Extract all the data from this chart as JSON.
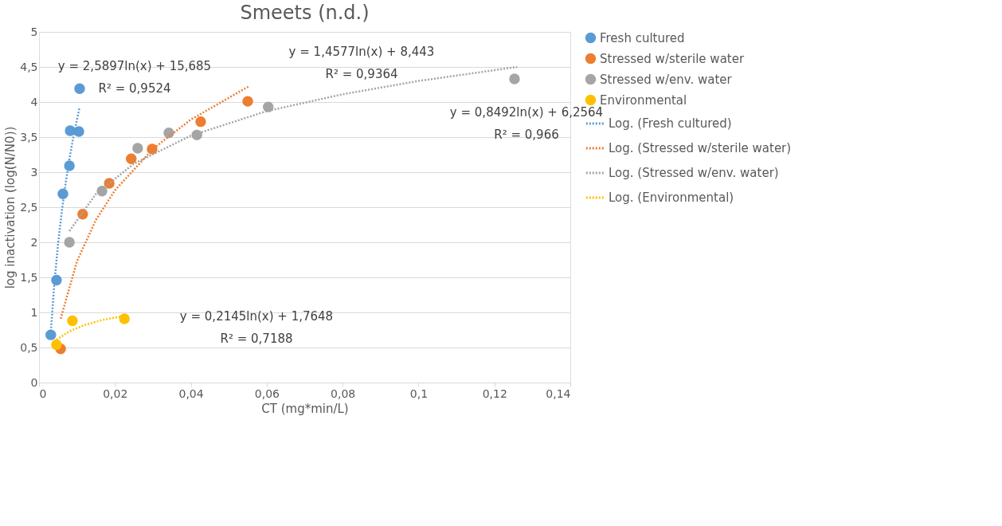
{
  "chart_data": {
    "type": "scatter",
    "title": "Smeets (n.d.)",
    "xlabel": "CT (mg*min/L)",
    "ylabel": "log inactivation (log(N/N0))",
    "xlim": [
      0,
      0.14
    ],
    "ylim": [
      0,
      5
    ],
    "xticks": [
      0,
      {
        "value": 0.02,
        "label": "0,02"
      },
      {
        "value": 0.04,
        "label": "0,04"
      },
      {
        "value": 0.06,
        "label": "0,06"
      },
      {
        "value": 0.08,
        "label": "0,08"
      },
      {
        "value": 0.1,
        "label": "0,1"
      },
      {
        "value": 0.12,
        "label": "0,12"
      },
      {
        "value": 0.14,
        "label": "0,14"
      }
    ],
    "yticks": [
      0,
      {
        "value": 0.5,
        "label": "0,5"
      },
      1,
      {
        "value": 1.5,
        "label": "1,5"
      },
      2,
      {
        "value": 2.5,
        "label": "2,5"
      },
      3,
      {
        "value": 3.5,
        "label": "3,5"
      },
      4,
      {
        "value": 4.5,
        "label": "4,5"
      },
      5
    ],
    "grid": "y",
    "legend": "right",
    "series": [
      {
        "name": "Fresh cultured",
        "marker": "circle",
        "color": "#5b9bd5",
        "x": [
          0.0031,
          0.0046,
          0.0063,
          0.008,
          0.0082,
          0.0105,
          0.0107
        ],
        "values": [
          0.68,
          1.46,
          2.69,
          3.09,
          3.59,
          3.58,
          4.19
        ]
      },
      {
        "name": "Stressed w/sterile water",
        "marker": "circle",
        "color": "#ed7d31",
        "x": [
          0.0057,
          0.0115,
          0.0185,
          0.0243,
          0.0298,
          0.0426,
          0.055
        ],
        "values": [
          0.48,
          2.4,
          2.84,
          3.19,
          3.33,
          3.72,
          4.01
        ]
      },
      {
        "name": "Stressed w/env. water",
        "marker": "circle",
        "color": "#a5a5a5",
        "x": [
          0.008,
          0.0166,
          0.026,
          0.0342,
          0.0416,
          0.0604,
          0.1253
        ],
        "values": [
          2.0,
          2.73,
          3.34,
          3.56,
          3.53,
          3.93,
          4.33
        ]
      },
      {
        "name": "Environmental",
        "marker": "circle",
        "color": "#ffc000",
        "x": [
          0.0046,
          0.0088,
          0.0225
        ],
        "values": [
          0.54,
          0.88,
          0.91
        ]
      },
      {
        "name": "Log. (Fresh cultured)",
        "type": "line",
        "marker": "none",
        "line_style": "dotted",
        "color": "#5b9bd5",
        "x": [
          0.003,
          0.004,
          0.005,
          0.006,
          0.007,
          0.008,
          0.009,
          0.0107
        ],
        "values": [
          0.64,
          1.39,
          1.97,
          2.44,
          2.84,
          3.18,
          3.49,
          3.93
        ]
      },
      {
        "name": "Log. (Stressed w/sterile water)",
        "type": "line",
        "marker": "none",
        "line_style": "dotted",
        "color": "#ed7d31",
        "x": [
          0.0057,
          0.01,
          0.015,
          0.02,
          0.03,
          0.04,
          0.0555
        ],
        "values": [
          0.91,
          1.73,
          2.32,
          2.74,
          3.33,
          3.75,
          4.23
        ]
      },
      {
        "name": "Log. (Stressed w/env. water)",
        "type": "line",
        "marker": "none",
        "line_style": "dotted",
        "color": "#a5a5a5",
        "x": [
          0.008,
          0.015,
          0.025,
          0.04,
          0.06,
          0.08,
          0.1,
          0.126
        ],
        "values": [
          2.16,
          2.69,
          3.12,
          3.52,
          3.87,
          4.11,
          4.3,
          4.5
        ]
      },
      {
        "name": "Log. (Environmental)",
        "type": "line",
        "marker": "none",
        "line_style": "dotted",
        "color": "#ffc000",
        "x": [
          0.0046,
          0.008,
          0.012,
          0.0165,
          0.0225
        ],
        "values": [
          0.61,
          0.73,
          0.82,
          0.89,
          0.95
        ]
      }
    ],
    "annotations": [
      "y = 2,5897ln(x) + 15,685\nR² = 0,9524",
      "y = 1,4577ln(x) + 8,443\nR² = 0,9364",
      "y = 0,8492ln(x) + 6,2564\nR² = 0,966",
      "y = 0,2145ln(x) + 1,7648\nR² = 0,7188"
    ]
  }
}
